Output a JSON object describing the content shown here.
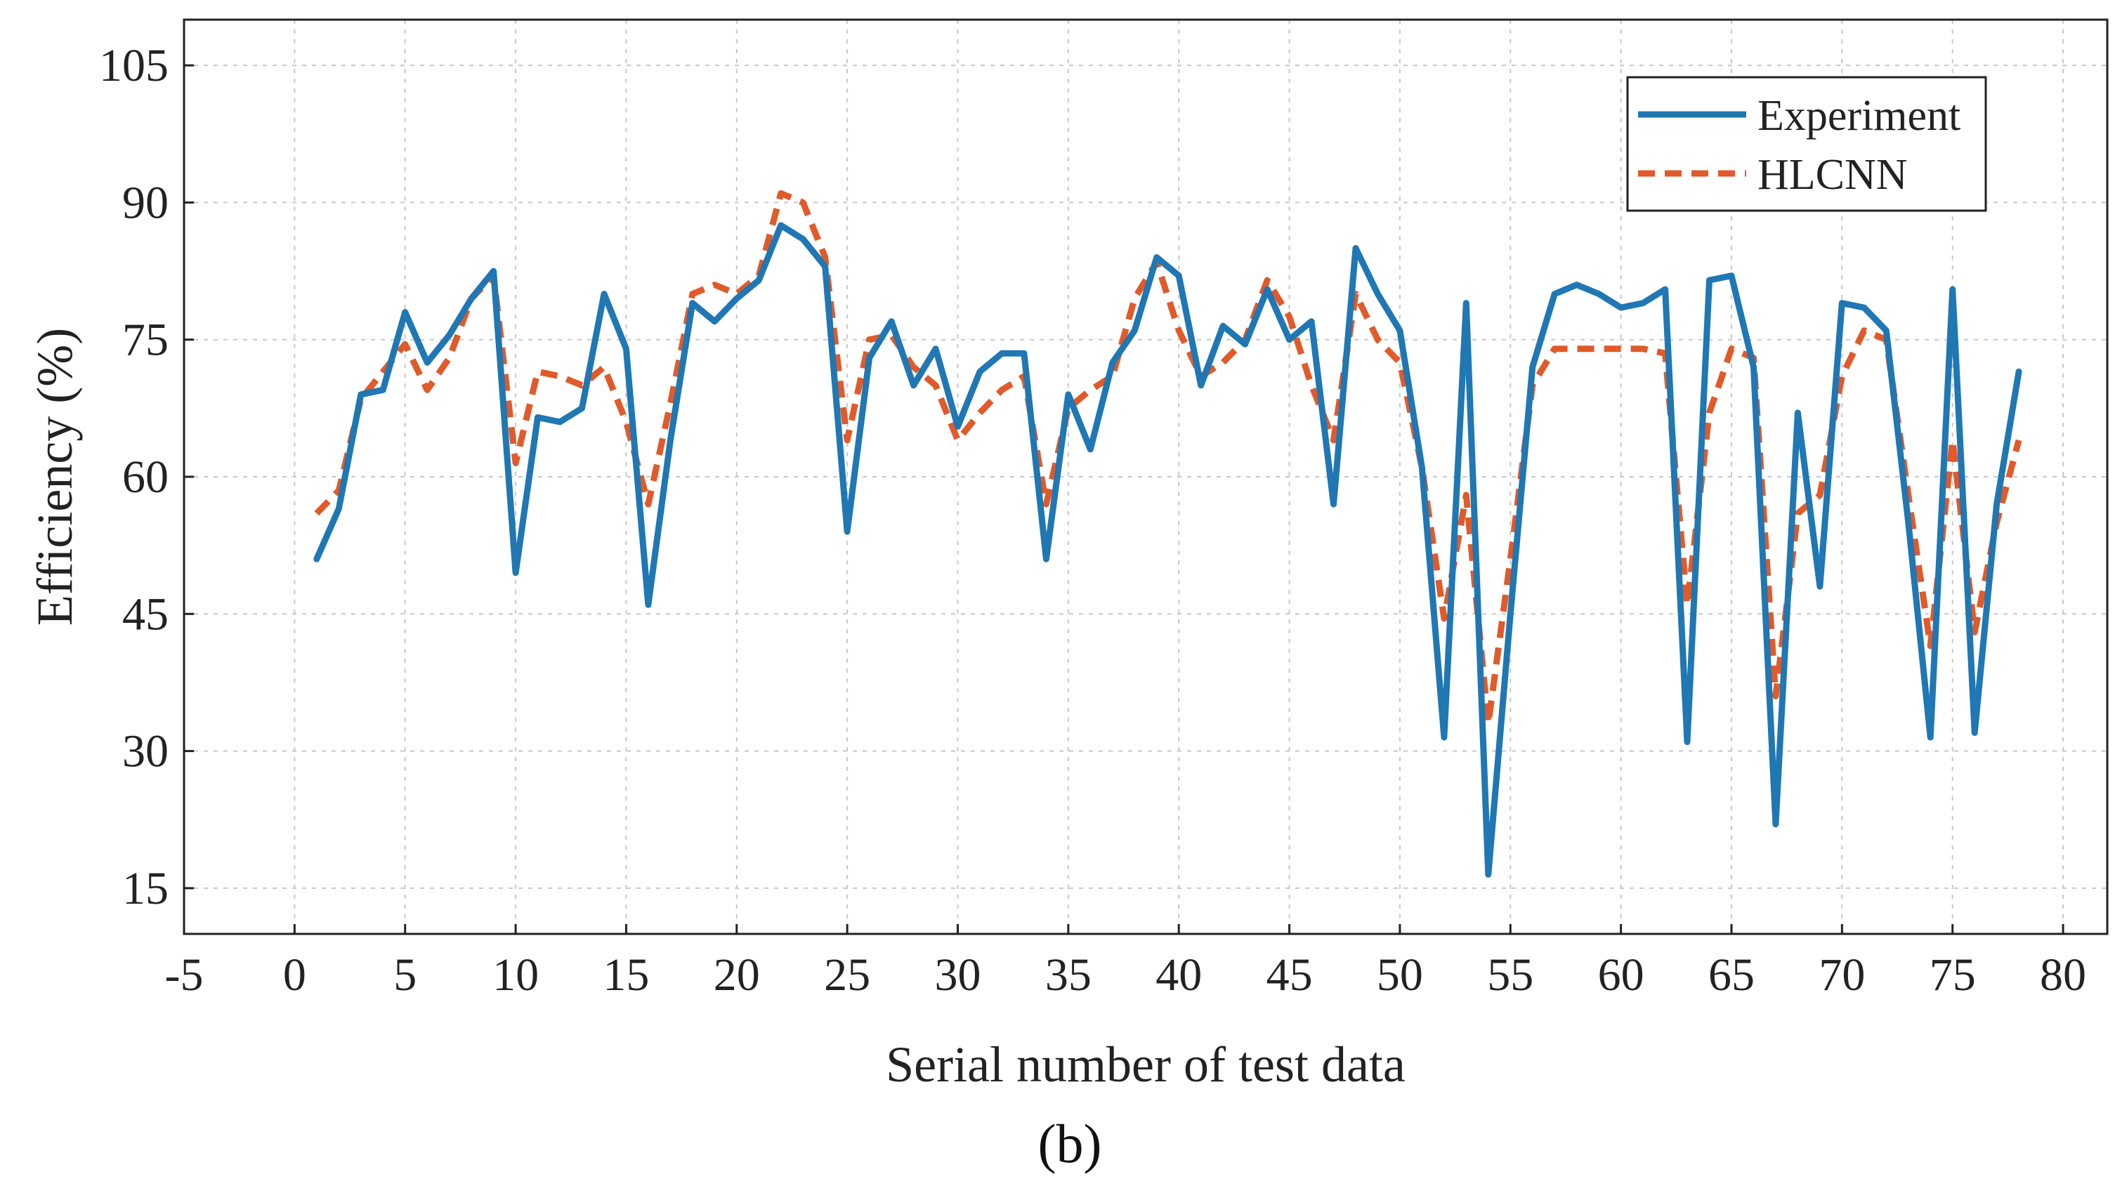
{
  "chart_data": {
    "type": "line",
    "title": "",
    "caption": "(b)",
    "xlabel": "Serial number of test data",
    "ylabel": "Efficiency (%)",
    "xlim": [
      -5,
      82
    ],
    "ylim": [
      10,
      110
    ],
    "xticks": [
      -5,
      0,
      5,
      10,
      15,
      20,
      25,
      30,
      35,
      40,
      45,
      50,
      55,
      60,
      65,
      70,
      75,
      80
    ],
    "yticks": [
      15,
      30,
      45,
      60,
      75,
      90,
      105
    ],
    "grid": true,
    "legend_position": "top-right",
    "series": [
      {
        "name": "Experiment",
        "color": "#1f77b4",
        "style": "solid",
        "x": [
          1,
          2,
          3,
          4,
          5,
          6,
          7,
          8,
          9,
          10,
          11,
          12,
          13,
          14,
          15,
          16,
          17,
          18,
          19,
          20,
          21,
          22,
          23,
          24,
          25,
          26,
          27,
          28,
          29,
          30,
          31,
          32,
          33,
          34,
          35,
          36,
          37,
          38,
          39,
          40,
          41,
          42,
          43,
          44,
          45,
          46,
          47,
          48,
          49,
          50,
          51,
          52,
          53,
          54,
          55,
          56,
          57,
          58,
          59,
          60,
          61,
          62,
          63,
          64,
          65,
          66,
          67,
          68,
          69,
          70,
          71,
          72,
          73,
          74,
          75,
          76,
          77,
          78
        ],
        "values": [
          51,
          56.5,
          69,
          69.5,
          78,
          72.5,
          75.5,
          79.5,
          82.5,
          49.5,
          66.5,
          66,
          67.5,
          80,
          74,
          46,
          64,
          79,
          77,
          79.5,
          81.5,
          87.5,
          86,
          83,
          54,
          73,
          77,
          70,
          74,
          65.5,
          71.5,
          73.5,
          73.5,
          51,
          69,
          63,
          72.5,
          76,
          84,
          82,
          70,
          76.5,
          74.5,
          80.5,
          75,
          77,
          57,
          85,
          80,
          76,
          61,
          31.5,
          79,
          16.5,
          45,
          72,
          80,
          81,
          80,
          78.5,
          79,
          80.5,
          31,
          81.5,
          82,
          72,
          22,
          67,
          48,
          79,
          78.5,
          76,
          55,
          31.5,
          80.5,
          32,
          57,
          71.5
        ]
      },
      {
        "name": "HLCNN",
        "color": "#e05a2a",
        "style": "dashed",
        "x": [
          1,
          2,
          3,
          4,
          5,
          6,
          7,
          8,
          9,
          10,
          11,
          12,
          13,
          14,
          15,
          16,
          17,
          18,
          19,
          20,
          21,
          22,
          23,
          24,
          25,
          26,
          27,
          28,
          29,
          30,
          31,
          32,
          33,
          34,
          35,
          36,
          37,
          38,
          39,
          40,
          41,
          42,
          43,
          44,
          45,
          46,
          47,
          48,
          49,
          50,
          51,
          52,
          53,
          54,
          55,
          56,
          57,
          58,
          59,
          60,
          61,
          62,
          63,
          64,
          65,
          66,
          67,
          68,
          69,
          70,
          71,
          72,
          73,
          74,
          75,
          76,
          77,
          78
        ],
        "values": [
          56,
          58.5,
          68.5,
          71.5,
          74.5,
          69.5,
          73,
          79.5,
          82,
          61.5,
          71.5,
          71,
          70,
          72,
          66,
          57,
          68,
          80,
          81,
          80,
          82,
          91,
          90,
          84,
          64,
          75,
          75.5,
          72,
          70,
          64,
          67,
          69.5,
          71,
          57,
          67.5,
          69.5,
          71,
          79.5,
          83.5,
          76,
          71,
          72.5,
          75,
          81.5,
          77.5,
          70,
          64,
          80,
          75,
          72.5,
          61,
          44.5,
          58,
          33,
          51,
          70,
          74,
          74,
          74,
          74,
          74,
          73.5,
          46,
          67,
          74,
          73,
          36,
          56,
          58,
          71,
          76,
          75,
          58,
          41.5,
          64,
          43,
          55,
          64
        ]
      }
    ]
  }
}
